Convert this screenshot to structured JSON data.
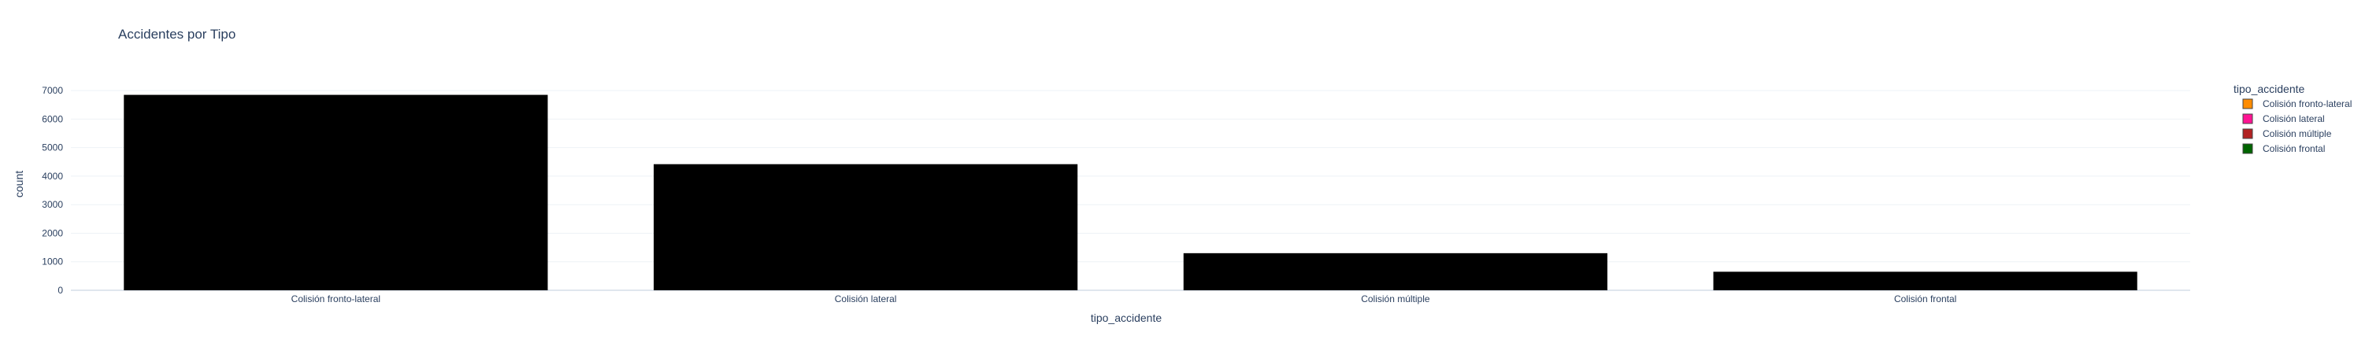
{
  "chart_data": {
    "type": "bar",
    "title": "Accidentes por Tipo",
    "xlabel": "tipo_accidente",
    "ylabel": "count",
    "categories": [
      "Colisión fronto-lateral",
      "Colisión lateral",
      "Colisión múltiple",
      "Colisión frontal"
    ],
    "values": [
      6850,
      4420,
      1300,
      650
    ],
    "ylim": [
      0,
      7500
    ],
    "yticks": [
      0,
      1000,
      2000,
      3000,
      4000,
      5000,
      6000,
      7000
    ],
    "bar_color": "#000000",
    "grid": true,
    "legend": {
      "title": "tipo_accidente",
      "placement": "top-right",
      "entries": [
        {
          "label": "Colisión fronto-lateral",
          "color": "#ff8c00"
        },
        {
          "label": "Colisión lateral",
          "color": "#ff1493"
        },
        {
          "label": "Colisión múltiple",
          "color": "#b22222"
        },
        {
          "label": "Colisión frontal",
          "color": "#006400"
        }
      ]
    }
  }
}
